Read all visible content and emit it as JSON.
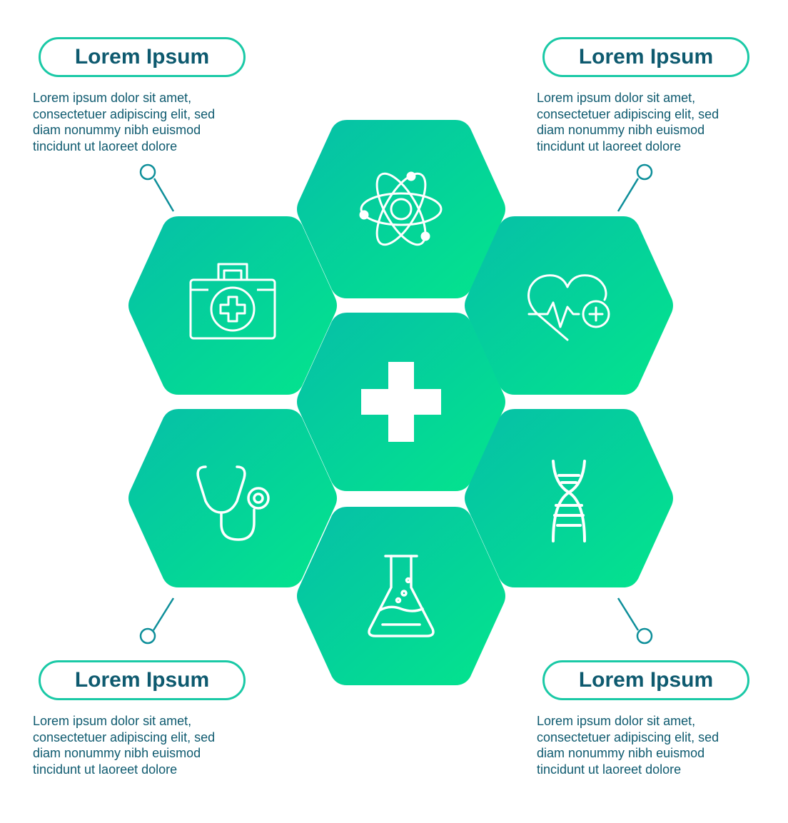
{
  "colors": {
    "gradient_start": "#06bfa8",
    "gradient_end": "#03e58c",
    "text_dark": "#0e5a6f",
    "outline": "#1ac9a6",
    "connector": "#0e8f9a",
    "icon": "#ffffff"
  },
  "cards": {
    "top_left": {
      "title": "Lorem Ipsum",
      "text": "Lorem ipsum dolor sit amet,\nconsectetuer adipiscing elit, sed\ndiam nonummy nibh euismod\ntincidunt ut laoreet dolore"
    },
    "top_right": {
      "title": "Lorem Ipsum",
      "text": "Lorem ipsum dolor sit amet,\nconsectetuer adipiscing elit, sed\ndiam nonummy nibh euismod\ntincidunt ut laoreet dolore"
    },
    "bottom_left": {
      "title": "Lorem Ipsum",
      "text": "Lorem ipsum dolor sit amet,\nconsectetuer adipiscing elit, sed\ndiam nonummy nibh euismod\ntincidunt ut laoreet dolore"
    },
    "bottom_right": {
      "title": "Lorem Ipsum",
      "text": "Lorem ipsum dolor sit amet,\nconsectetuer adipiscing elit, sed\ndiam nonummy nibh euismod\ntincidunt ut laoreet dolore"
    }
  },
  "hexagons": [
    {
      "position": "top",
      "icon": "atom-icon"
    },
    {
      "position": "upper-left",
      "icon": "first-aid-kit-icon"
    },
    {
      "position": "upper-right",
      "icon": "heart-rate-plus-icon"
    },
    {
      "position": "center",
      "icon": "medical-cross-icon"
    },
    {
      "position": "lower-left",
      "icon": "stethoscope-icon"
    },
    {
      "position": "lower-right",
      "icon": "dna-icon"
    },
    {
      "position": "bottom",
      "icon": "lab-flask-icon"
    }
  ]
}
